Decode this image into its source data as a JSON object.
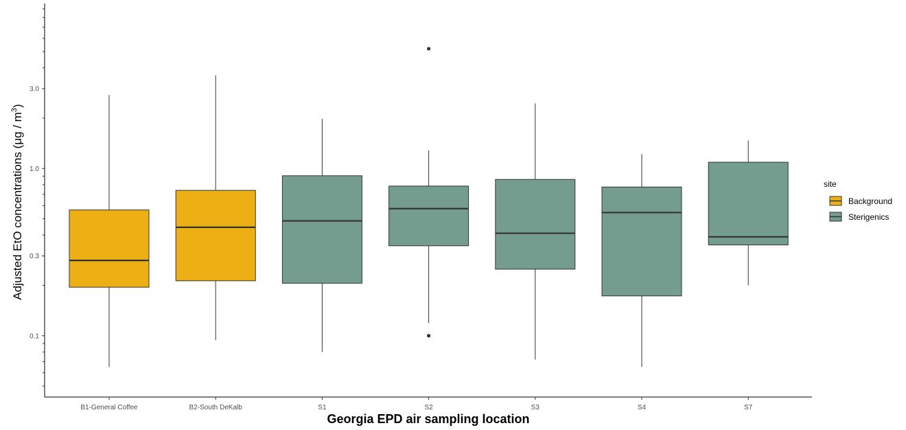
{
  "chart_data": {
    "type": "boxplot",
    "xlabel": "Georgia EPD air sampling location",
    "ylabel": "Adjusted EtO concentrations (μg/m³)",
    "ylabel_parts": {
      "main": "Adjusted EtO concentrations (μg / m",
      "sup": "3",
      "close": ")"
    },
    "y_scale": "log10",
    "ylim": [
      0.043,
      9.7
    ],
    "y_ticks": [
      0.1,
      0.3,
      1.0,
      3.0
    ],
    "y_tick_labels": [
      "0.1",
      "0.3",
      "1.0",
      "3.0"
    ],
    "grid": false,
    "legend": {
      "title": "site",
      "position": "right",
      "entries": [
        {
          "name": "Background",
          "color": "#EDB014"
        },
        {
          "name": "Sterigenics",
          "color": "#749C8F"
        }
      ]
    },
    "categories": [
      "B1-General Coffee",
      "B2-South DeKalb",
      "S1",
      "S2",
      "S3",
      "S4",
      "S7"
    ],
    "boxes": [
      {
        "category": "B1-General Coffee",
        "site": "Background",
        "whisker_low": 0.065,
        "q1": 0.195,
        "median": 0.282,
        "q3": 0.565,
        "whisker_high": 2.75,
        "outliers": []
      },
      {
        "category": "B2-South DeKalb",
        "site": "Background",
        "whisker_low": 0.094,
        "q1": 0.213,
        "median": 0.445,
        "q3": 0.74,
        "whisker_high": 3.6,
        "outliers": []
      },
      {
        "category": "S1",
        "site": "Sterigenics",
        "whisker_low": 0.08,
        "q1": 0.206,
        "median": 0.486,
        "q3": 0.905,
        "whisker_high": 1.98,
        "outliers": []
      },
      {
        "category": "S2",
        "site": "Sterigenics",
        "whisker_low": 0.119,
        "q1": 0.345,
        "median": 0.575,
        "q3": 0.785,
        "whisker_high": 1.28,
        "outliers": [
          5.2,
          0.1
        ]
      },
      {
        "category": "S3",
        "site": "Sterigenics",
        "whisker_low": 0.072,
        "q1": 0.25,
        "median": 0.41,
        "q3": 0.86,
        "whisker_high": 2.45,
        "outliers": []
      },
      {
        "category": "S4",
        "site": "Sterigenics",
        "whisker_low": 0.065,
        "q1": 0.173,
        "median": 0.545,
        "q3": 0.775,
        "whisker_high": 1.22,
        "outliers": []
      },
      {
        "category": "S7",
        "site": "Sterigenics",
        "whisker_low": 0.2,
        "q1": 0.349,
        "median": 0.39,
        "q3": 1.09,
        "whisker_high": 1.47,
        "outliers": []
      }
    ]
  }
}
